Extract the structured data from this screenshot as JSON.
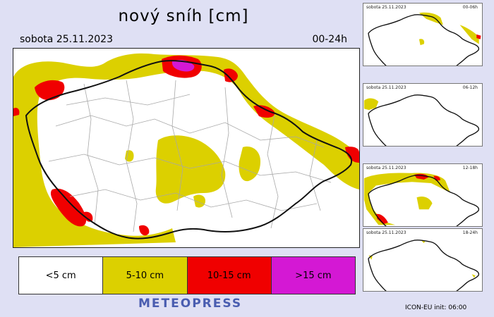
{
  "title": "nový sníh [cm]",
  "date": "sobota 25.11.2023",
  "range": "00-24h",
  "legend": [
    {
      "label": "<5 cm",
      "color": "#ffffff"
    },
    {
      "label": "5-10 cm",
      "color": "#dcd000"
    },
    {
      "label": "10-15 cm",
      "color": "#f00000"
    },
    {
      "label": ">15 cm",
      "color": "#d418d4"
    }
  ],
  "brand": "METEOPRESS",
  "thumbs": [
    {
      "date": "sobota 25.11.2023",
      "range": "00-06h"
    },
    {
      "date": "sobota 25.11.2023",
      "range": "06-12h"
    },
    {
      "date": "sobota 25.11.2023",
      "range": "12-18h"
    },
    {
      "date": "sobota 25.11.2023",
      "range": "18-24h"
    }
  ],
  "footer": "ICON-EU  init: 06:00"
}
